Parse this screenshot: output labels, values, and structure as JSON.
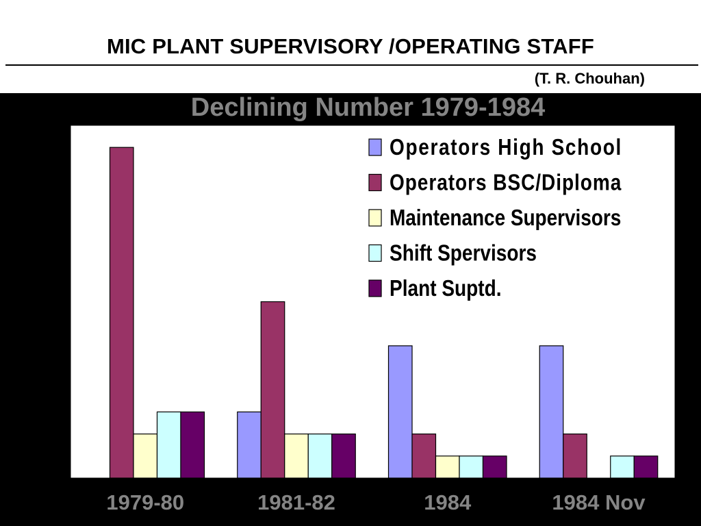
{
  "title": "MIC PLANT SUPERVISORY /OPERATING STAFF",
  "author": "(T. R. Chouhan)",
  "chart_data": {
    "type": "bar",
    "title": "Declining Number 1979-1984",
    "categories": [
      "1979-80",
      "1981-82",
      "1984",
      "1984 Nov"
    ],
    "series": [
      {
        "name": "Operators High School",
        "color": "#9999ff",
        "values": [
          0,
          3,
          6,
          6
        ]
      },
      {
        "name": "Operators BSC/Diploma",
        "color": "#993366",
        "values": [
          15,
          8,
          2,
          2
        ]
      },
      {
        "name": "Maintenance Supervisors",
        "color": "#ffffcc",
        "values": [
          2,
          2,
          1,
          0
        ]
      },
      {
        "name": "Shift Spervisors",
        "color": "#ccffff",
        "values": [
          3,
          2,
          1,
          1
        ]
      },
      {
        "name": "Plant Suptd.",
        "color": "#660066",
        "values": [
          3,
          2,
          1,
          1
        ]
      }
    ],
    "ylim": [
      0,
      16
    ],
    "grid": false,
    "legend": "top-right"
  }
}
